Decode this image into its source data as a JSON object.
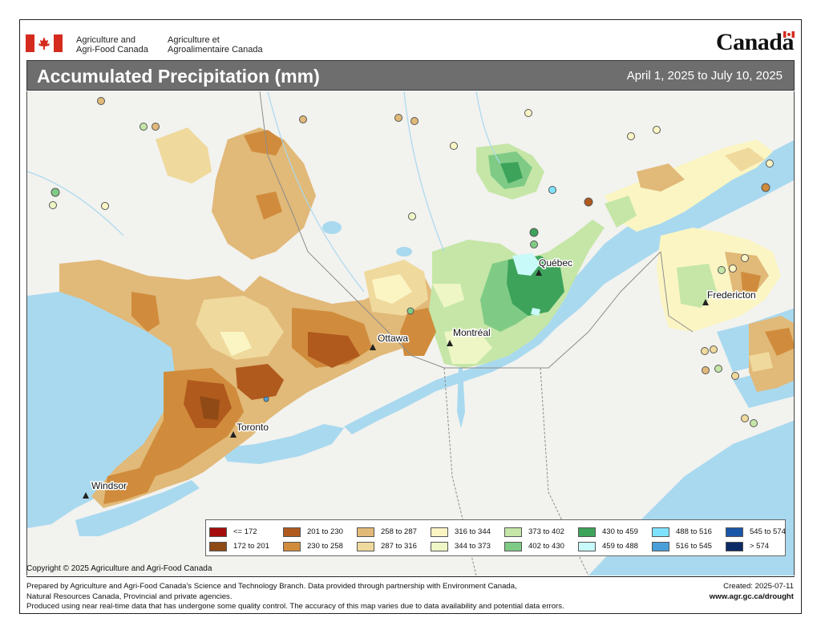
{
  "header": {
    "dept_en_line1": "Agriculture and",
    "dept_en_line2": "Agri-Food Canada",
    "dept_fr_line1": "Agriculture et",
    "dept_fr_line2": "Agroalimentaire Canada",
    "wordmark": "Canada"
  },
  "title_bar": {
    "title": "Accumulated Precipitation (mm)",
    "date_range": "April 1, 2025 to July 10, 2025"
  },
  "map": {
    "cities": [
      {
        "name": "Québec"
      },
      {
        "name": "Fredericton"
      },
      {
        "name": "Ottawa"
      },
      {
        "name": "Montréal"
      },
      {
        "name": "Toronto"
      },
      {
        "name": "Windsor"
      }
    ]
  },
  "legend": {
    "items": [
      {
        "label": "<= 172",
        "color": "#a50d0d"
      },
      {
        "label": "172 to 201",
        "color": "#8f4a15"
      },
      {
        "label": "201 to 230",
        "color": "#b05a1e"
      },
      {
        "label": "230 to 258",
        "color": "#d08c3c"
      },
      {
        "label": "258 to 287",
        "color": "#e1b978"
      },
      {
        "label": "287 to 316",
        "color": "#efd99c"
      },
      {
        "label": "316 to 344",
        "color": "#fbf5c4"
      },
      {
        "label": "344 to 373",
        "color": "#eef6c6"
      },
      {
        "label": "373 to 402",
        "color": "#c5e6a7"
      },
      {
        "label": "402 to 430",
        "color": "#7fcb85"
      },
      {
        "label": "430 to 459",
        "color": "#3da35a"
      },
      {
        "label": "459 to 488",
        "color": "#c8fafa"
      },
      {
        "label": "488 to 516",
        "color": "#7fe3ff"
      },
      {
        "label": "516 to 545",
        "color": "#4a9fd8"
      },
      {
        "label": "545 to 574",
        "color": "#1a56a8"
      },
      {
        "label": "> 574",
        "color": "#0c2a66"
      }
    ]
  },
  "copyright": "Copyright © 2025 Agriculture and Agri-Food Canada",
  "footer": {
    "line1": "Prepared by Agriculture and Agri-Food Canada's Science and Technology Branch. Data provided through partnership with Environment Canada,",
    "line2": "Natural Resources Canada, Provincial and private agencies.",
    "line3": "Produced using near real-time data that has undergone some quality control. The accuracy of this map varies due to data availability and potential data errors.",
    "created": "Created: 2025-07-11",
    "url": "www.agr.gc.ca/drought"
  },
  "colors": {
    "water": "#a9d9ef",
    "land": "#f2f2ef",
    "title_bar": "#6e6e6e",
    "flag_red": "#d52b1e"
  }
}
